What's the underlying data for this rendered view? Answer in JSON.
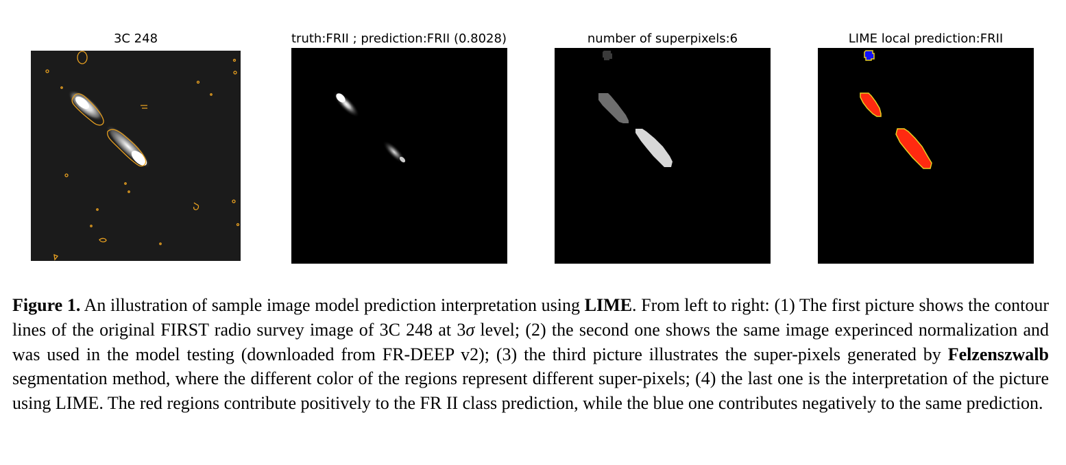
{
  "panels": [
    {
      "title": "3C 248"
    },
    {
      "title": "truth:FRII ; prediction:FRII (0.8028)"
    },
    {
      "title": "number of superpixels:6"
    },
    {
      "title": "LIME local prediction:FRII"
    }
  ],
  "colors": {
    "contour": "#e8a020",
    "positive_region": "#ff2a10",
    "negative_region": "#1010ff",
    "background": "#000000"
  },
  "caption": {
    "label": "Figure 1.",
    "t1": " An illustration of sample image model prediction interpretation using ",
    "b1": "LIME",
    "t2": ". From left to right: (1) The first picture shows the contour lines of the original FIRST radio survey image of 3C 248 at 3",
    "sigma": "σ",
    "t3": " level; (2) the second one shows the same image experinced normalization and was used in the model testing (downloaded from FR-DEEP v2); (3) the third picture illustrates the super-pixels generated by ",
    "b2": "Felzenszwalb",
    "t4": " segmentation method, where the different color of the regions represent different super-pixels; (4) the last one is the interpretation of the picture using LIME. The red regions contribute positively to the FR II class prediction, while the blue one contributes negatively to the same prediction."
  }
}
